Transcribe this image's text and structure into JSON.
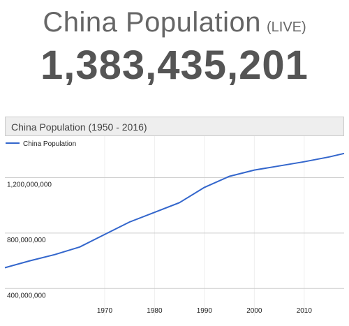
{
  "header": {
    "title": "China Population",
    "live_label": "(LIVE)",
    "counter": "1,383,435,201"
  },
  "chart_data": {
    "type": "line",
    "title": "China Population (1950 - 2016)",
    "xlabel": "",
    "ylabel": "",
    "xlim": [
      1950,
      2018
    ],
    "ylim": [
      200000000,
      1500000000
    ],
    "x_ticks": [
      1970,
      1980,
      1990,
      2000,
      2010
    ],
    "y_ticks": [
      400000000,
      800000000,
      1200000000
    ],
    "y_tick_labels": [
      "400,000,000",
      "800,000,000",
      "1,200,000,000"
    ],
    "x_tick_labels": [
      "1970",
      "1980",
      "1990",
      "2000",
      "2010"
    ],
    "grid": true,
    "legend_position": "top-left",
    "series": [
      {
        "name": "China Population",
        "color": "#3366cc",
        "x": [
          1950,
          1955,
          1960,
          1965,
          1970,
          1975,
          1980,
          1985,
          1990,
          1995,
          2000,
          2005,
          2010,
          2015,
          2018
        ],
        "y": [
          550000000,
          600000000,
          645000000,
          700000000,
          790000000,
          880000000,
          950000000,
          1020000000,
          1130000000,
          1210000000,
          1255000000,
          1285000000,
          1315000000,
          1350000000,
          1375000000
        ]
      }
    ]
  }
}
